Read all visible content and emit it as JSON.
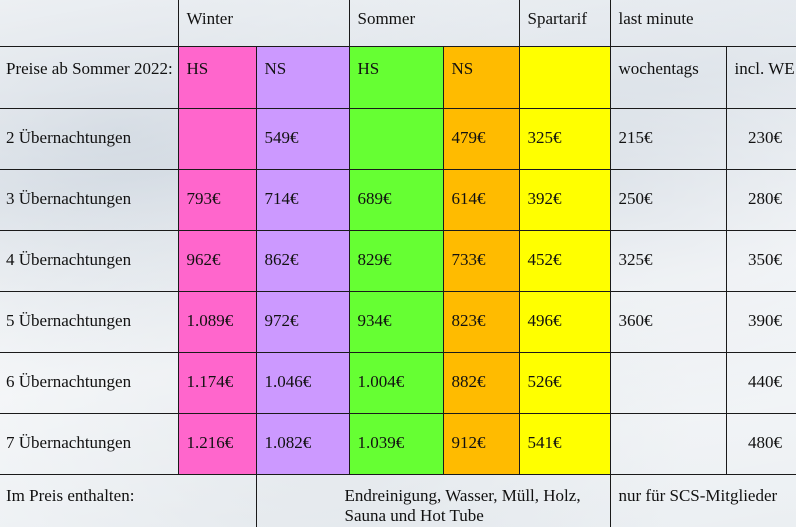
{
  "header": {
    "winter": "Winter",
    "sommer": "Sommer",
    "spartarif": "Spartarif",
    "last_minute": "last minute"
  },
  "subheader": {
    "label": "Preise ab Sommer 2022:",
    "winter_hs": "HS",
    "winter_ns": "NS",
    "sommer_hs": "HS",
    "sommer_ns": "NS",
    "weekday": "wochentags",
    "weekend": "incl. WE"
  },
  "rows": [
    {
      "label": "2 Übernachtungen",
      "w_hs": "",
      "w_ns": "549€",
      "s_hs": "",
      "s_ns": "479€",
      "spar": "325€",
      "lm_wd": "215€",
      "lm_we": "230€"
    },
    {
      "label": "3 Übernachtungen",
      "w_hs": "793€",
      "w_ns": "714€",
      "s_hs": "689€",
      "s_ns": "614€",
      "spar": "392€",
      "lm_wd": "250€",
      "lm_we": "280€"
    },
    {
      "label": "4 Übernachtungen",
      "w_hs": "962€",
      "w_ns": "862€",
      "s_hs": "829€",
      "s_ns": "733€",
      "spar": "452€",
      "lm_wd": "325€",
      "lm_we": "350€"
    },
    {
      "label": "5 Übernachtungen",
      "w_hs": "1.089€",
      "w_ns": "972€",
      "s_hs": "934€",
      "s_ns": "823€",
      "spar": "496€",
      "lm_wd": "360€",
      "lm_we": "390€"
    },
    {
      "label": "6 Übernachtungen",
      "w_hs": "1.174€",
      "w_ns": "1.046€",
      "s_hs": "1.004€",
      "s_ns": "882€",
      "spar": "526€",
      "lm_wd": "",
      "lm_we": "440€"
    },
    {
      "label": "7 Übernachtungen",
      "w_hs": "1.216€",
      "w_ns": "1.082€",
      "s_hs": "1.039€",
      "s_ns": "912€",
      "spar": "541€",
      "lm_wd": "",
      "lm_we": "480€"
    }
  ],
  "footer": {
    "label": "Im Preis enthalten:",
    "included": "Endreinigung, Wasser, Müll, Holz, Sauna und Hot Tube",
    "members": "nur für SCS-Mitglieder"
  },
  "colors": {
    "winter_hs": "#ff66cc",
    "winter_ns": "#cc99ff",
    "sommer_hs": "#66ff33",
    "sommer_ns": "#ffbb00",
    "spartarif": "#ffff00"
  }
}
